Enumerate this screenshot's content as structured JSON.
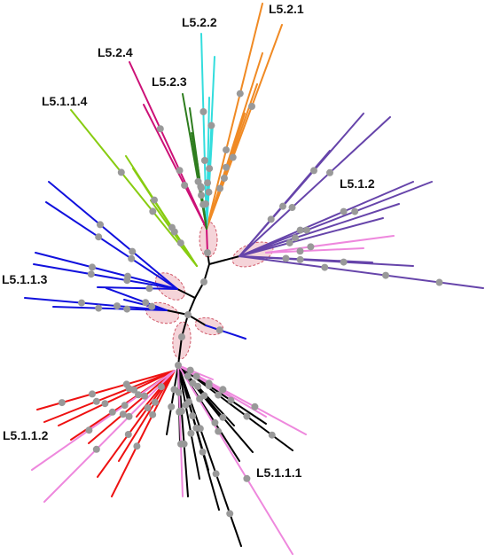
{
  "figure": {
    "type": "unrooted phylogenetic tree",
    "background": "#ffffff",
    "node_color": "#999999",
    "highlight_fill": "#f2c6cc",
    "highlight_stroke": "#d05868"
  },
  "clades": [
    {
      "id": "l521",
      "label": "L5.2.1",
      "color": "#f08a24"
    },
    {
      "id": "l522",
      "label": "L5.2.2",
      "color": "#33dddd"
    },
    {
      "id": "l524",
      "label": "L5.2.4",
      "color": "#cc1177"
    },
    {
      "id": "l523",
      "label": "L5.2.3",
      "color": "#2e7d1e"
    },
    {
      "id": "l5114",
      "label": "L5.1.1.4",
      "color": "#88cc11"
    },
    {
      "id": "l512",
      "label": "L5.1.2",
      "color": "#6644aa"
    },
    {
      "id": "l5113",
      "label": "L5.1.1.3",
      "color": "#1111dd"
    },
    {
      "id": "l5112",
      "label": "L5.1.1.2",
      "color": "#ee1111"
    },
    {
      "id": "l5111",
      "label": "L5.1.1.1",
      "color": "#000000"
    },
    {
      "id": "other",
      "label": "",
      "color": "#ee88dd"
    }
  ]
}
